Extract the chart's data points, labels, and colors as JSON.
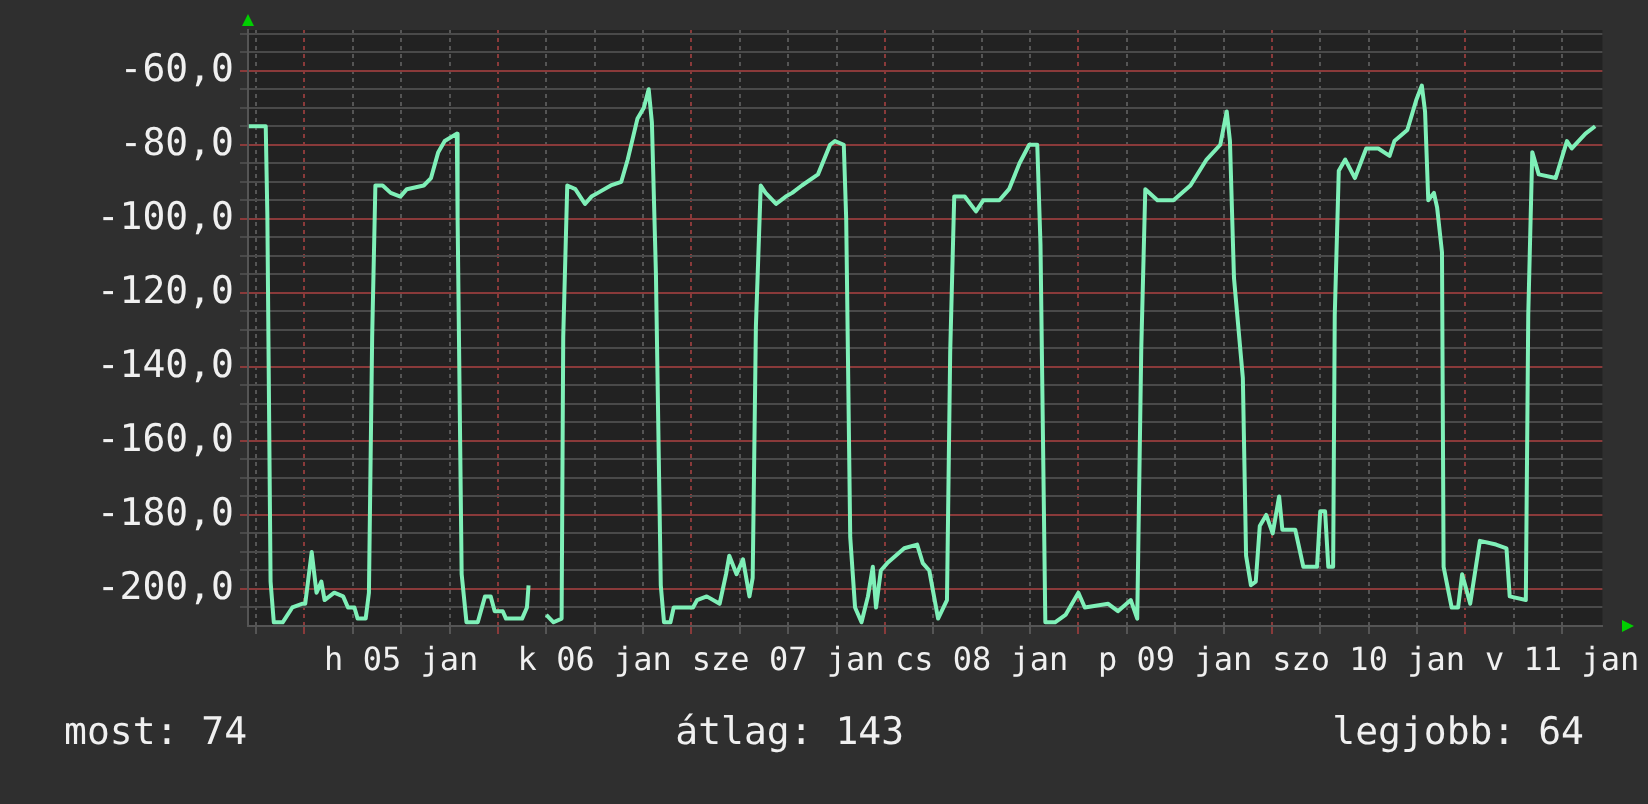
{
  "chart_data": {
    "type": "line",
    "color": "#7ff0b8",
    "grid": true,
    "legend": false,
    "marker": "none",
    "line_style": "solid",
    "xlim": [
      "--01-04T17:00",
      "--01-11T17:00"
    ],
    "ylim": [
      -210,
      -49
    ],
    "xticks": [
      {
        "value": "--01-04T18:00",
        "label": null
      },
      {
        "value": "--01-05T00:00",
        "label": null
      },
      {
        "value": "--01-05T06:00",
        "label": null
      },
      {
        "value": "--01-05T12:00",
        "label": "h 05 jan"
      },
      {
        "value": "--01-05T18:00",
        "label": null
      },
      {
        "value": "--01-06T00:00",
        "label": null
      },
      {
        "value": "--01-06T06:00",
        "label": null
      },
      {
        "value": "--01-06T12:00",
        "label": "k 06 jan"
      },
      {
        "value": "--01-06T18:00",
        "label": null
      },
      {
        "value": "--01-07T00:00",
        "label": null
      },
      {
        "value": "--01-07T06:00",
        "label": null
      },
      {
        "value": "--01-07T12:00",
        "label": "sze 07 jan"
      },
      {
        "value": "--01-07T18:00",
        "label": null
      },
      {
        "value": "--01-08T00:00",
        "label": null
      },
      {
        "value": "--01-08T06:00",
        "label": null
      },
      {
        "value": "--01-08T12:00",
        "label": "cs 08 jan"
      },
      {
        "value": "--01-08T18:00",
        "label": null
      },
      {
        "value": "--01-09T00:00",
        "label": null
      },
      {
        "value": "--01-09T06:00",
        "label": null
      },
      {
        "value": "--01-09T12:00",
        "label": "p 09 jan"
      },
      {
        "value": "--01-09T18:00",
        "label": null
      },
      {
        "value": "--01-10T00:00",
        "label": null
      },
      {
        "value": "--01-10T06:00",
        "label": null
      },
      {
        "value": "--01-10T12:00",
        "label": "szo 10 jan"
      },
      {
        "value": "--01-10T18:00",
        "label": null
      },
      {
        "value": "--01-11T00:00",
        "label": null
      },
      {
        "value": "--01-11T06:00",
        "label": null
      },
      {
        "value": "--01-11T12:00",
        "label": "v 11 jan"
      }
    ],
    "yticks": [
      {
        "value": -205,
        "label": null
      },
      {
        "value": -200,
        "label": "-200,0"
      },
      {
        "value": -195,
        "label": null
      },
      {
        "value": -190,
        "label": null
      },
      {
        "value": -185,
        "label": null
      },
      {
        "value": -180,
        "label": "-180,0"
      },
      {
        "value": -175,
        "label": null
      },
      {
        "value": -170,
        "label": null
      },
      {
        "value": -165,
        "label": null
      },
      {
        "value": -160,
        "label": "-160,0"
      },
      {
        "value": -155,
        "label": null
      },
      {
        "value": -150,
        "label": null
      },
      {
        "value": -145,
        "label": null
      },
      {
        "value": -140,
        "label": "-140,0"
      },
      {
        "value": -135,
        "label": null
      },
      {
        "value": -130,
        "label": null
      },
      {
        "value": -125,
        "label": null
      },
      {
        "value": -120,
        "label": "-120,0"
      },
      {
        "value": -115,
        "label": null
      },
      {
        "value": -110,
        "label": null
      },
      {
        "value": -105,
        "label": null
      },
      {
        "value": -100,
        "label": "-100,0"
      },
      {
        "value": -95,
        "label": null
      },
      {
        "value": -90,
        "label": null
      },
      {
        "value": -85,
        "label": null
      },
      {
        "value": -80,
        "label": "-80,0"
      },
      {
        "value": -75,
        "label": null
      },
      {
        "value": -70,
        "label": null
      },
      {
        "value": -65,
        "label": null
      },
      {
        "value": -60,
        "label": "-60,0"
      },
      {
        "value": -55,
        "label": null
      },
      {
        "value": -50,
        "label": null
      }
    ],
    "annotations": [
      "most: 74",
      "átlag: 143",
      "legjobb: 64"
    ],
    "x": [
      "--01-04T17:06",
      "--01-04T19:12",
      "--01-04T19:24",
      "--01-04T19:48",
      "--01-04T20:12",
      "--01-04T21:18",
      "--01-04T22:30",
      "--01-04T23:42",
      "--01-05T00:06",
      "--01-05T00:30",
      "--01-05T00:54",
      "--01-05T01:30",
      "--01-05T02:06",
      "--01-05T02:30",
      "--01-05T03:42",
      "--01-05T04:48",
      "--01-05T05:24",
      "--01-05T06:12",
      "--01-05T06:36",
      "--01-05T07:36",
      "--01-05T08:00",
      "--01-05T08:24",
      "--01-05T08:48",
      "--01-05T09:42",
      "--01-05T10:42",
      "--01-05T11:54",
      "--01-05T12:42",
      "--01-05T14:48",
      "--01-05T15:42",
      "--01-05T16:36",
      "--01-05T17:24",
      "--01-05T18:54",
      "--01-05T19:00",
      "--01-05T19:30",
      "--01-05T20:06",
      "--01-05T21:30",
      "--01-05T22:24",
      "--01-05T23:06",
      "--01-05T23:36",
      "--01-06T00:36",
      "--01-06T01:00",
      "--01-06T03:00",
      "--01-06T03:36",
      "--01-06T03:48",
      "--01-06T04:48",
      "--01-06T06:00",
      "--01-06T06:54",
      "--01-06T07:54",
      "--01-06T08:06",
      "--01-06T08:36",
      "--01-06T09:36",
      "--01-06T10:48",
      "--01-06T11:36",
      "--01-06T12:24",
      "--01-06T14:00",
      "--01-06T15:18",
      "--01-06T16:06",
      "--01-06T17:18",
      "--01-06T18:06",
      "--01-06T18:42",
      "--01-06T19:06",
      "--01-06T19:36",
      "--01-06T20:12",
      "--01-06T20:36",
      "--01-06T21:24",
      "--01-06T21:48",
      "--01-06T23:00",
      "--01-07T00:12",
      "--01-07T00:42",
      "--01-07T01:54",
      "--01-07T03:30",
      "--01-07T04:18",
      "--01-07T04:42",
      "--01-07T05:36",
      "--01-07T06:24",
      "--01-07T07:12",
      "--01-07T07:36",
      "--01-07T08:00",
      "--01-07T08:36",
      "--01-07T09:12",
      "--01-07T10:30",
      "--01-07T11:42",
      "--01-07T12:30",
      "--01-07T13:42",
      "--01-07T15:42",
      "--01-07T17:12",
      "--01-07T17:48",
      "--01-07T18:54",
      "--01-07T19:12",
      "--01-07T19:42",
      "--01-07T20:18",
      "--01-07T21:06",
      "--01-07T21:54",
      "--01-07T22:30",
      "--01-07T22:54",
      "--01-07T23:30",
      "--01-08T00:18",
      "--01-08T02:24",
      "--01-08T04:00",
      "--01-08T04:42",
      "--01-08T05:30",
      "--01-08T06:36",
      "--01-08T07:42",
      "--01-08T08:06",
      "--01-08T08:36",
      "--01-08T09:54",
      "--01-08T11:18",
      "--01-08T12:12",
      "--01-08T14:12",
      "--01-08T15:24",
      "--01-08T16:42",
      "--01-08T17:54",
      "--01-08T18:54",
      "--01-08T19:18",
      "--01-08T19:54",
      "--01-08T21:06",
      "--01-08T22:24",
      "--01-09T00:00",
      "--01-09T00:48",
      "--01-09T03:42",
      "--01-09T04:54",
      "--01-09T06:30",
      "--01-09T07:18",
      "--01-09T07:48",
      "--01-09T08:18",
      "--01-09T09:48",
      "--01-09T11:48",
      "--01-09T13:54",
      "--01-09T15:54",
      "--01-09T17:36",
      "--01-09T18:24",
      "--01-09T18:48",
      "--01-09T19:18",
      "--01-09T20:24",
      "--01-09T20:48",
      "--01-09T21:24",
      "--01-09T22:00",
      "--01-09T22:30",
      "--01-09T23:18",
      "--01-10T00:06",
      "--01-10T00:54",
      "--01-10T01:18",
      "--01-10T02:54",
      "--01-10T03:54",
      "--01-10T05:36",
      "--01-10T06:00",
      "--01-10T06:36",
      "--01-10T07:00",
      "--01-10T07:36",
      "--01-10T07:48",
      "--01-10T08:18",
      "--01-10T09:06",
      "--01-10T10:18",
      "--01-10T11:42",
      "--01-10T13:12",
      "--01-10T14:36",
      "--01-10T15:12",
      "--01-10T16:48",
      "--01-10T17:54",
      "--01-10T18:36",
      "--01-10T19:00",
      "--01-10T19:24",
      "--01-10T20:06",
      "--01-10T20:30",
      "--01-10T21:06",
      "--01-10T21:18",
      "--01-10T22:18",
      "--01-10T23:06",
      "--01-10T23:36",
      "--01-11T00:36",
      "--01-11T01:48",
      "--01-11T03:48",
      "--01-11T05:06",
      "--01-11T05:30",
      "--01-11T07:30",
      "--01-11T07:48",
      "--01-11T08:18",
      "--01-11T09:06",
      "--01-11T11:12",
      "--01-11T12:36",
      "--01-11T13:12",
      "--01-11T14:54",
      "--01-11T16:06"
    ],
    "values": [
      -75,
      -75,
      -99,
      -198,
      -209,
      -209,
      -205,
      -204,
      -204,
      -197,
      -190,
      -201,
      -198,
      -203,
      -201,
      -202,
      -205,
      -205,
      -208,
      -208,
      -201,
      -132,
      -91,
      -91,
      -93,
      -94,
      -92,
      -91,
      -89,
      -82,
      -79,
      -77,
      -100,
      -196,
      -209,
      -209,
      -202,
      -202,
      -206,
      -206,
      -208,
      -208,
      -205,
      -199,
      null,
      -207,
      -209,
      -208,
      -132,
      -91,
      -92,
      -96,
      -94,
      -93,
      -91,
      -90,
      -84,
      -73,
      -70,
      -65,
      -74,
      -115,
      -199,
      -209,
      -209,
      -205,
      -205,
      -205,
      -203,
      -202,
      -204,
      -196,
      -191,
      -196,
      -192,
      -202,
      -197,
      -129,
      -91,
      -93,
      -96,
      -94,
      -93,
      -91,
      -88,
      -80,
      -79,
      -80,
      -100,
      -186,
      -205,
      -209,
      -202,
      -194,
      -205,
      -195,
      -193,
      -189,
      -188,
      -193,
      -195,
      -208,
      -203,
      -136,
      -94,
      -94,
      -98,
      -95,
      -95,
      -92,
      -85,
      -80,
      -80,
      -107,
      -209,
      -209,
      -207,
      -201,
      -205,
      -204,
      -206,
      -203,
      -208,
      -135,
      -92,
      -95,
      -95,
      -91,
      -84,
      -80,
      -71,
      -79,
      -116,
      -143,
      -191,
      -199,
      -198,
      -183,
      -180,
      -185,
      -175,
      -184,
      -184,
      -194,
      -194,
      -179,
      -179,
      -194,
      -194,
      -126,
      -87,
      -84,
      -89,
      -81,
      -81,
      -83,
      -79,
      -76,
      -68,
      -64,
      -71,
      -95,
      -93,
      -97,
      -109,
      -194,
      -205,
      -205,
      -196,
      -204,
      -187,
      -188,
      -189,
      -202,
      -203,
      -126,
      -82,
      -88,
      -89,
      -79,
      -81,
      -77,
      -75
    ]
  }
}
